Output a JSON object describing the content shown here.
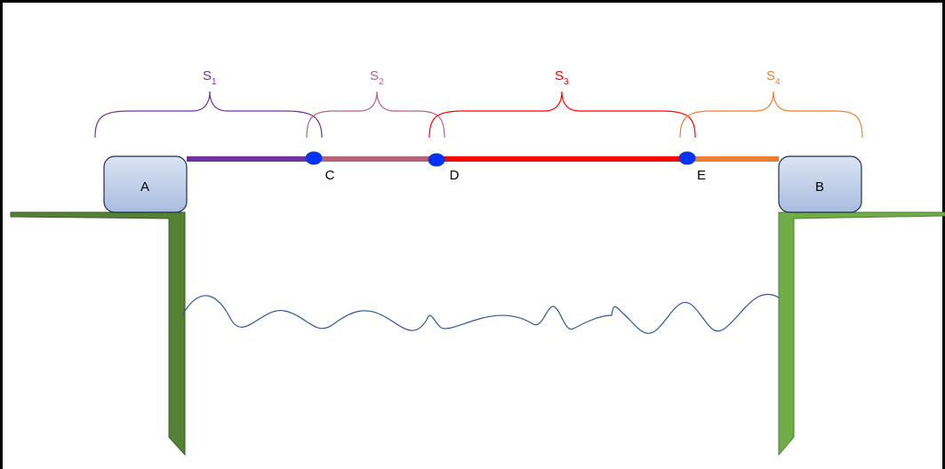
{
  "nodes": [
    {
      "label": "A"
    },
    {
      "label": "B"
    },
    {
      "label": "C"
    },
    {
      "label": "D"
    },
    {
      "label": "E"
    }
  ],
  "segments": [
    {
      "letter": "S",
      "index": "1"
    },
    {
      "letter": "S",
      "index": "2"
    },
    {
      "letter": "S",
      "index": "3"
    },
    {
      "letter": "S",
      "index": "4"
    }
  ]
}
